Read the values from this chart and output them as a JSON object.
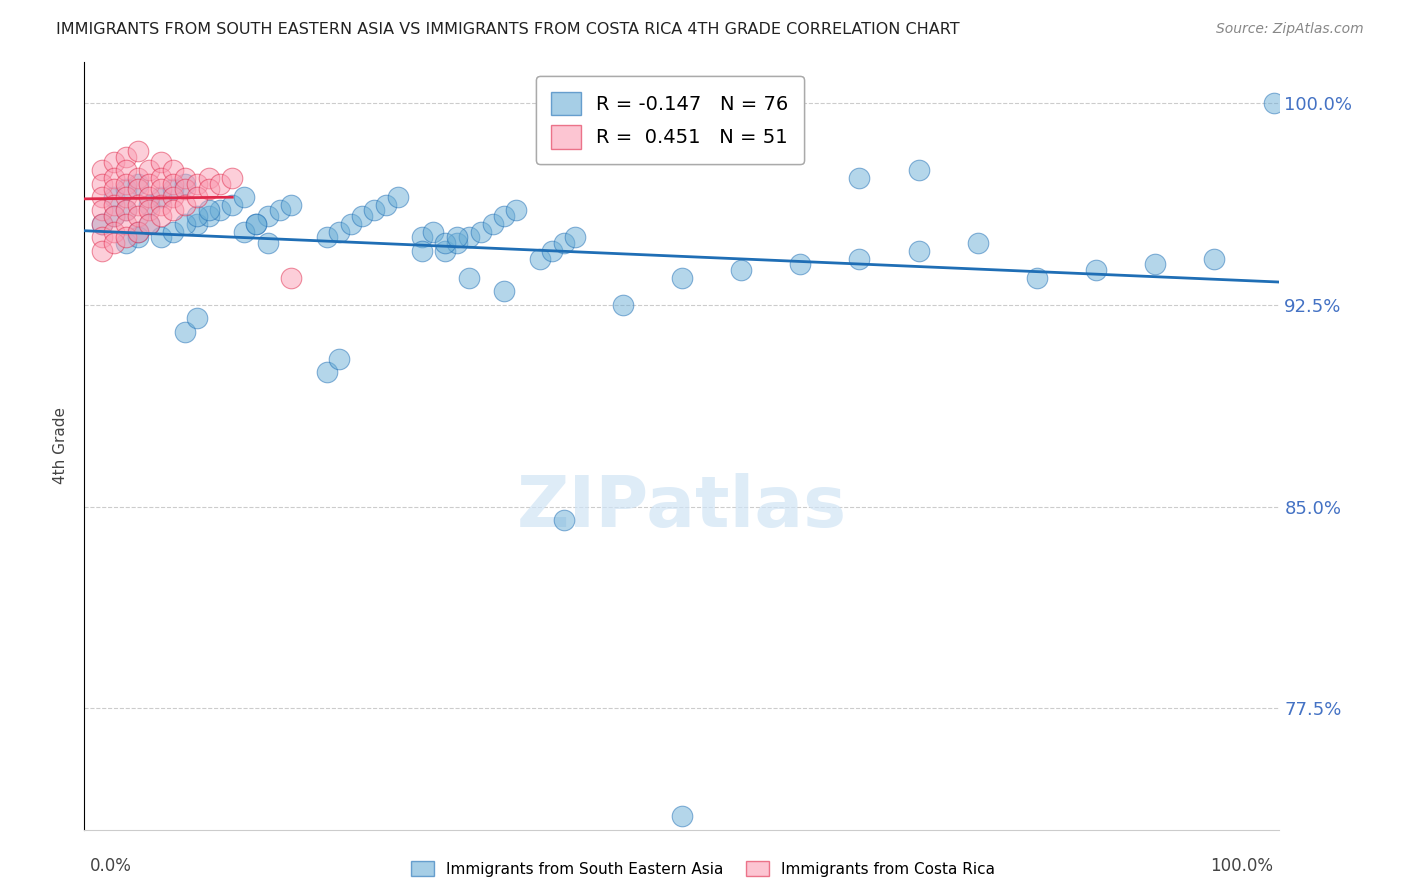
{
  "title": "IMMIGRANTS FROM SOUTH EASTERN ASIA VS IMMIGRANTS FROM COSTA RICA 4TH GRADE CORRELATION CHART",
  "source": "Source: ZipAtlas.com",
  "ylabel": "4th Grade",
  "watermark": "ZIPatlas",
  "legend_blue_r": "-0.147",
  "legend_blue_n": "76",
  "legend_pink_r": "0.451",
  "legend_pink_n": "51",
  "yticks": [
    77.5,
    85.0,
    92.5,
    100.0
  ],
  "ylim": [
    73.0,
    101.5
  ],
  "xlim": [
    -0.005,
    1.005
  ],
  "blue_color": "#6baed6",
  "pink_color": "#fa9fb5",
  "trend_blue": "#1f6eb5",
  "trend_pink": "#e0294a",
  "blue_x": [
    0.02,
    0.03,
    0.04,
    0.01,
    0.02,
    0.03,
    0.05,
    0.06,
    0.07,
    0.08,
    0.09,
    0.1,
    0.11,
    0.12,
    0.13,
    0.06,
    0.07,
    0.08,
    0.09,
    0.1,
    0.04,
    0.05,
    0.03,
    0.04,
    0.14,
    0.15,
    0.16,
    0.17,
    0.13,
    0.14,
    0.2,
    0.21,
    0.22,
    0.23,
    0.24,
    0.25,
    0.26,
    0.15,
    0.28,
    0.29,
    0.3,
    0.31,
    0.32,
    0.33,
    0.34,
    0.35,
    0.36,
    0.28,
    0.3,
    0.31,
    0.38,
    0.39,
    0.4,
    0.41,
    0.5,
    0.55,
    0.6,
    0.65,
    0.7,
    0.75,
    0.8,
    0.85,
    0.9,
    0.95,
    1.0,
    0.65,
    0.7,
    0.35,
    0.32,
    0.45,
    0.08,
    0.09,
    0.2,
    0.21,
    0.4,
    0.5
  ],
  "blue_y": [
    96.5,
    96.8,
    97.0,
    95.5,
    95.8,
    96.0,
    96.2,
    96.5,
    96.8,
    97.0,
    95.5,
    95.8,
    96.0,
    96.2,
    96.5,
    95.0,
    95.2,
    95.5,
    95.8,
    96.0,
    95.2,
    95.5,
    94.8,
    95.0,
    95.5,
    95.8,
    96.0,
    96.2,
    95.2,
    95.5,
    95.0,
    95.2,
    95.5,
    95.8,
    96.0,
    96.2,
    96.5,
    94.8,
    95.0,
    95.2,
    94.5,
    94.8,
    95.0,
    95.2,
    95.5,
    95.8,
    96.0,
    94.5,
    94.8,
    95.0,
    94.2,
    94.5,
    94.8,
    95.0,
    93.5,
    93.8,
    94.0,
    94.2,
    94.5,
    94.8,
    93.5,
    93.8,
    94.0,
    94.2,
    100.0,
    97.2,
    97.5,
    93.0,
    93.5,
    92.5,
    91.5,
    92.0,
    90.0,
    90.5,
    84.5,
    73.5
  ],
  "pink_x": [
    0.01,
    0.02,
    0.03,
    0.04,
    0.01,
    0.02,
    0.03,
    0.01,
    0.02,
    0.03,
    0.04,
    0.05,
    0.06,
    0.01,
    0.02,
    0.03,
    0.04,
    0.05,
    0.06,
    0.07,
    0.01,
    0.02,
    0.03,
    0.04,
    0.05,
    0.06,
    0.07,
    0.08,
    0.01,
    0.02,
    0.03,
    0.04,
    0.05,
    0.06,
    0.07,
    0.08,
    0.09,
    0.1,
    0.01,
    0.02,
    0.03,
    0.04,
    0.05,
    0.06,
    0.07,
    0.08,
    0.09,
    0.1,
    0.11,
    0.12,
    0.17
  ],
  "pink_y": [
    97.5,
    97.8,
    98.0,
    98.2,
    97.0,
    97.2,
    97.5,
    96.5,
    96.8,
    97.0,
    97.2,
    97.5,
    97.8,
    96.0,
    96.2,
    96.5,
    96.8,
    97.0,
    97.2,
    97.5,
    95.5,
    95.8,
    96.0,
    96.2,
    96.5,
    96.8,
    97.0,
    97.2,
    95.0,
    95.2,
    95.5,
    95.8,
    96.0,
    96.2,
    96.5,
    96.8,
    97.0,
    97.2,
    94.5,
    94.8,
    95.0,
    95.2,
    95.5,
    95.8,
    96.0,
    96.2,
    96.5,
    96.8,
    97.0,
    97.2,
    93.5
  ]
}
